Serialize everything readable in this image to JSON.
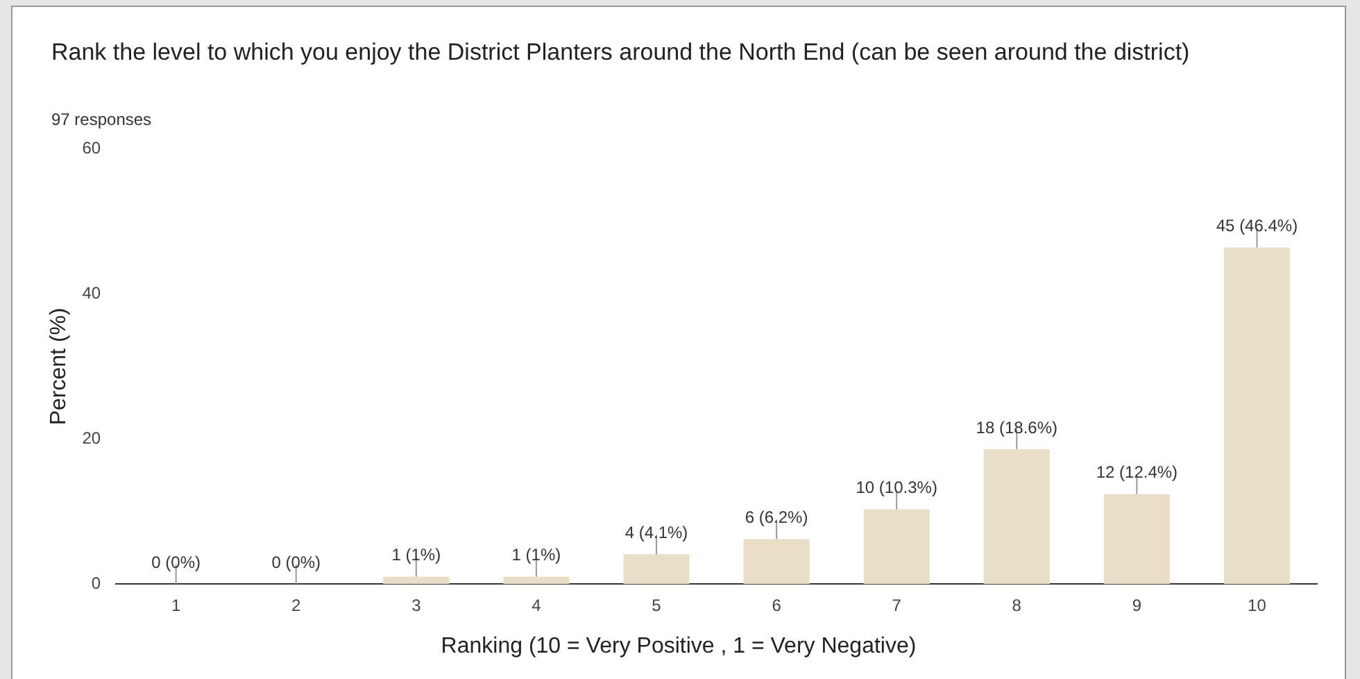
{
  "chart_data": {
    "type": "bar",
    "title": "Rank the level to which you enjoy the District Planters around the North End (can be seen around the district)",
    "subtitle": "97 responses",
    "xlabel": "Ranking (10 = Very Positive , 1 = Very Negative)",
    "ylabel": "Percent (%)",
    "categories": [
      "1",
      "2",
      "3",
      "4",
      "5",
      "6",
      "7",
      "8",
      "9",
      "10"
    ],
    "values": [
      0,
      0,
      1,
      1,
      4.1,
      6.2,
      10.3,
      18.6,
      12.4,
      46.4
    ],
    "value_labels": [
      "0 (0%)",
      "0 (0%)",
      "1 (1%)",
      "1 (1%)",
      "4 (4.1%)",
      "6 (6.2%)",
      "10 (10.3%)",
      "18 (18.6%)",
      "12 (12.4%)",
      "45 (46.4%)"
    ],
    "color": "#e9dfc9",
    "ylim": [
      0,
      60
    ],
    "yticks": [
      0,
      20,
      40,
      60
    ],
    "grid": false,
    "legend": false
  }
}
